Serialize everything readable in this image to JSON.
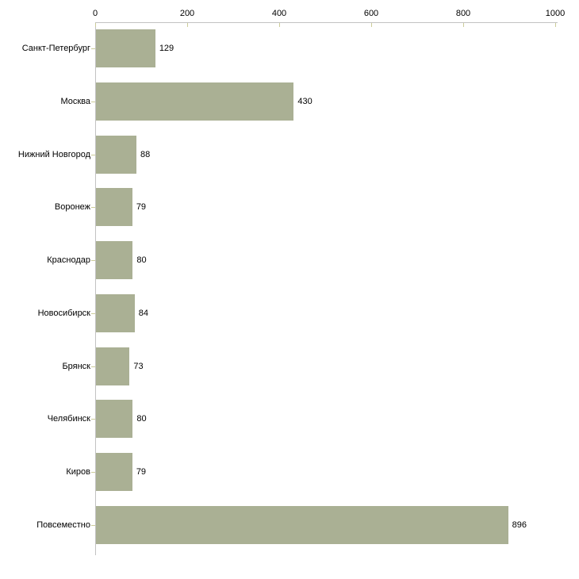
{
  "chart_data": {
    "type": "bar",
    "orientation": "horizontal",
    "title": "",
    "xlabel": "",
    "ylabel": "",
    "categories": [
      "Санкт-Петербург",
      "Москва",
      "Нижний Новгород",
      "Воронеж",
      "Краснодар",
      "Новосибирск",
      "Брянск",
      "Челябинск",
      "Киров",
      "Повсеместно"
    ],
    "values": [
      129,
      430,
      88,
      79,
      80,
      84,
      73,
      80,
      79,
      896
    ],
    "x_ticks": [
      "0",
      "200",
      "400",
      "600",
      "800",
      "1000"
    ],
    "x_tick_values": [
      0,
      200,
      400,
      600,
      800,
      1000
    ],
    "xlim": [
      0,
      1000
    ],
    "axis_position": "top",
    "show_value_labels": true,
    "grid": false,
    "legend": false,
    "colors": {
      "bar": "#aab094",
      "axis_line": "#c2c2c2",
      "tick_mark": "#cccc99",
      "text": "#000000",
      "background": "#ffffff"
    }
  }
}
